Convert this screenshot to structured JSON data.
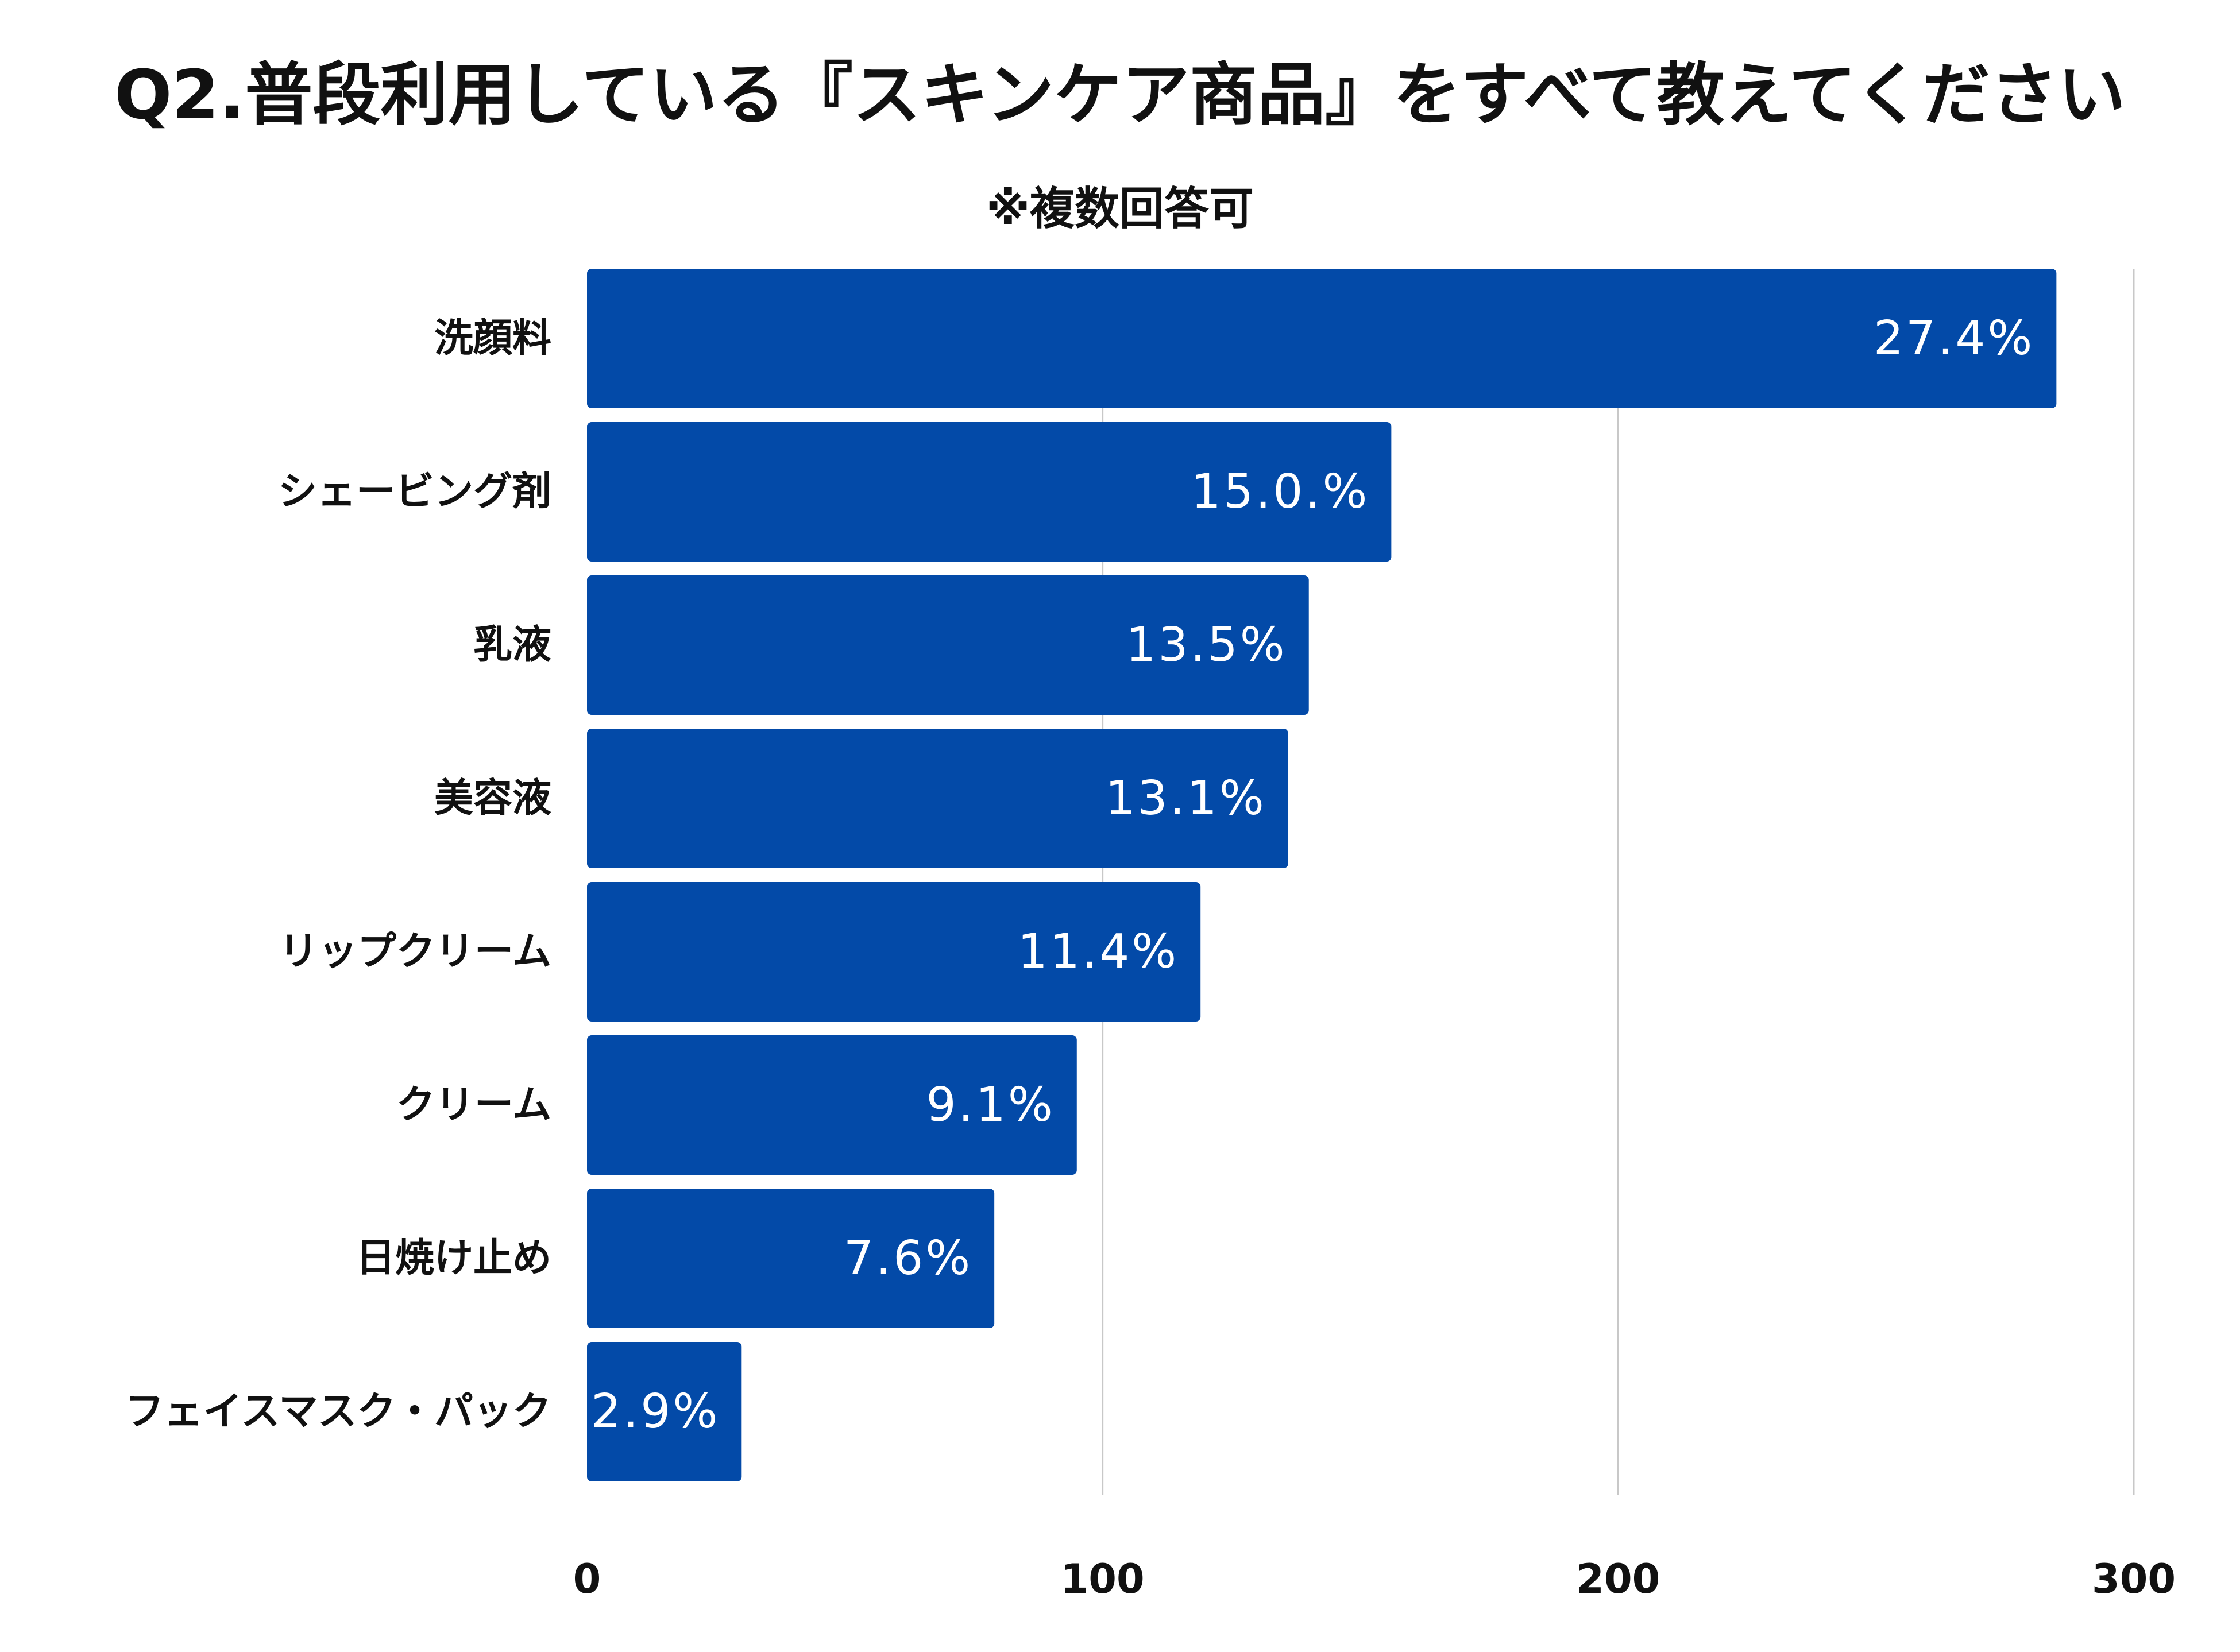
{
  "chart_data": {
    "type": "bar",
    "orientation": "horizontal",
    "title": "Q2.普段利用している『スキンケア商品』をすべて教えてください",
    "subtitle": "※複数回答可",
    "categories": [
      "洗顔料",
      "シェービング剤",
      "乳液",
      "美容液",
      "リップクリーム",
      "クリーム",
      "日焼け止め",
      "フェイスマスク・パック"
    ],
    "values": [
      285,
      156,
      140,
      136,
      119,
      95,
      79,
      30
    ],
    "value_labels": [
      "27.4%",
      "15.0.%",
      "13.5%",
      "13.1%",
      "11.4%",
      "9.1%",
      "7.6%",
      "2.9%"
    ],
    "xlim": [
      0,
      300
    ],
    "ticks": [
      0,
      100,
      200,
      300
    ],
    "tick_labels": [
      "0",
      "100",
      "200",
      "300"
    ],
    "grid": true,
    "bar_color": "#034aa8",
    "grid_color": "#c8c8c8",
    "label_color": "#ffffff"
  }
}
